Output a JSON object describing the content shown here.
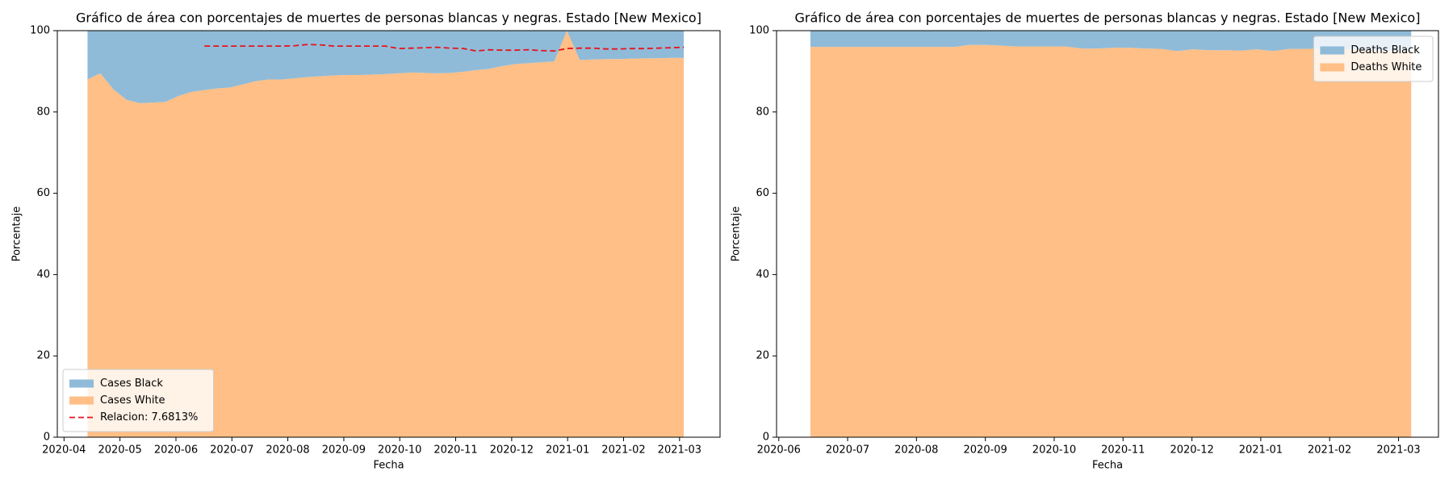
{
  "chart_data": [
    {
      "type": "area",
      "title": "Gráfico de área con porcentajes de muertes de personas blancas y negras. Estado [New Mexico]",
      "xlabel": "Fecha",
      "ylabel": "Porcentaje",
      "x": [
        2020.285,
        2020.304,
        2020.324,
        2020.343,
        2020.362,
        2020.382,
        2020.401,
        2020.42,
        2020.439,
        2020.459,
        2020.478,
        2020.497,
        2020.517,
        2020.536,
        2020.555,
        2020.575,
        2020.594,
        2020.613,
        2020.632,
        2020.652,
        2020.671,
        2020.69,
        2020.71,
        2020.729,
        2020.748,
        2020.768,
        2020.787,
        2020.806,
        2020.825,
        2020.845,
        2020.864,
        2020.883,
        2020.903,
        2020.922,
        2020.941,
        2020.961,
        2020.98,
        2020.999,
        2021.018,
        2021.038,
        2021.057,
        2021.076,
        2021.096,
        2021.115,
        2021.134,
        2021.154,
        2021.173
      ],
      "series": [
        {
          "name": "Cases Black",
          "color": "#8fbbd9",
          "values": [
            12,
            10.5,
            14.5,
            17,
            17.8,
            17.7,
            17.5,
            16.1,
            15.1,
            14.6,
            14.2,
            14,
            13.2,
            12.4,
            12,
            12,
            11.7,
            11.4,
            11.2,
            11,
            10.9,
            10.9,
            10.8,
            10.7,
            10.5,
            10.3,
            10.4,
            10.5,
            10.4,
            10.1,
            9.7,
            9.4,
            8.7,
            8.2,
            8,
            7.8,
            7.6,
            0,
            7.2,
            7.1,
            7,
            7,
            6.9,
            6.8,
            6.8,
            6.7,
            6.7
          ]
        },
        {
          "name": "Cases White",
          "color": "#ffbf86",
          "values": [
            88,
            89.5,
            85.5,
            83,
            82.2,
            82.3,
            82.5,
            83.9,
            84.9,
            85.4,
            85.8,
            86,
            86.8,
            87.6,
            88,
            88,
            88.3,
            88.6,
            88.8,
            89,
            89.1,
            89.1,
            89.2,
            89.3,
            89.5,
            89.7,
            89.6,
            89.5,
            89.6,
            89.9,
            90.3,
            90.6,
            91.3,
            91.8,
            92,
            92.2,
            92.4,
            100,
            92.8,
            92.9,
            93,
            93,
            93.1,
            93.2,
            93.2,
            93.3,
            93.3
          ]
        },
        {
          "name": "Relacion: 7.6813%",
          "color": "#e8141c",
          "linestyle": "dashed",
          "values": [
            null,
            null,
            null,
            null,
            null,
            null,
            null,
            null,
            null,
            96.2,
            96.2,
            96.2,
            96.2,
            96.2,
            96.2,
            96.2,
            96.3,
            96.6,
            96.5,
            96.2,
            96.2,
            96.2,
            96.2,
            96.2,
            95.6,
            95.7,
            95.8,
            95.9,
            95.7,
            95.6,
            95,
            95.3,
            95.2,
            95.2,
            95.3,
            95.1,
            95,
            95.6,
            95.7,
            95.7,
            95.5,
            95.5,
            95.6,
            95.6,
            95.7,
            95.8,
            95.9
          ]
        }
      ],
      "xlim": [
        2020.24,
        2021.227
      ],
      "xticks": [
        {
          "value": 2020.25,
          "label": "2020-04"
        },
        {
          "value": 2020.3333,
          "label": "2020-05"
        },
        {
          "value": 2020.4167,
          "label": "2020-06"
        },
        {
          "value": 2020.5,
          "label": "2020-07"
        },
        {
          "value": 2020.5833,
          "label": "2020-08"
        },
        {
          "value": 2020.6667,
          "label": "2020-09"
        },
        {
          "value": 2020.75,
          "label": "2020-10"
        },
        {
          "value": 2020.8333,
          "label": "2020-11"
        },
        {
          "value": 2020.9167,
          "label": "2020-12"
        },
        {
          "value": 2021.0,
          "label": "2021-01"
        },
        {
          "value": 2021.0833,
          "label": "2021-02"
        },
        {
          "value": 2021.1667,
          "label": "2021-03"
        }
      ],
      "ylim": [
        0,
        100
      ],
      "yticks": [
        0,
        20,
        40,
        60,
        80,
        100
      ],
      "grid": false,
      "legend": "lower left"
    },
    {
      "type": "area",
      "title": "Gráfico de área con porcentajes de muertes de personas blancas y negras. Estado [New Mexico]",
      "xlabel": "Fecha",
      "ylabel": "Porcentaje",
      "x": [
        2020.455,
        2020.474,
        2020.494,
        2020.513,
        2020.532,
        2020.552,
        2020.571,
        2020.59,
        2020.609,
        2020.629,
        2020.648,
        2020.667,
        2020.687,
        2020.706,
        2020.725,
        2020.745,
        2020.764,
        2020.783,
        2020.802,
        2020.822,
        2020.841,
        2020.86,
        2020.88,
        2020.899,
        2020.918,
        2020.938,
        2020.957,
        2020.976,
        2020.995,
        2021.015,
        2021.034,
        2021.053,
        2021.073,
        2021.092,
        2021.111,
        2021.13,
        2021.15,
        2021.169,
        2021.182
      ],
      "series": [
        {
          "name": "Deaths Black",
          "color": "#8fbbd9",
          "values": [
            4,
            4,
            4,
            4,
            4,
            4,
            4,
            4,
            4,
            4,
            3.5,
            3.5,
            3.7,
            3.9,
            3.9,
            3.9,
            3.9,
            4.4,
            4.4,
            4.2,
            4.2,
            4.4,
            4.5,
            5,
            4.6,
            4.8,
            4.8,
            4.9,
            4.6,
            5,
            4.5,
            4.5,
            4.4,
            4.4,
            4.7,
            4.8,
            5,
            5,
            5
          ]
        },
        {
          "name": "Deaths White",
          "color": "#ffbf86",
          "values": [
            96,
            96,
            96,
            96,
            96,
            96,
            96,
            96,
            96,
            96,
            96.5,
            96.5,
            96.3,
            96.1,
            96.1,
            96.1,
            96.1,
            95.6,
            95.6,
            95.8,
            95.8,
            95.6,
            95.5,
            95,
            95.4,
            95.2,
            95.2,
            95.1,
            95.4,
            95,
            95.5,
            95.5,
            95.6,
            95.6,
            95.3,
            95.2,
            95,
            95,
            95
          ]
        }
      ],
      "xlim": [
        2020.414,
        2021.215
      ],
      "xticks": [
        {
          "value": 2020.4167,
          "label": "2020-06"
        },
        {
          "value": 2020.5,
          "label": "2020-07"
        },
        {
          "value": 2020.5833,
          "label": "2020-08"
        },
        {
          "value": 2020.6667,
          "label": "2020-09"
        },
        {
          "value": 2020.75,
          "label": "2020-10"
        },
        {
          "value": 2020.8333,
          "label": "2020-11"
        },
        {
          "value": 2020.9167,
          "label": "2020-12"
        },
        {
          "value": 2021.0,
          "label": "2021-01"
        },
        {
          "value": 2021.0833,
          "label": "2021-02"
        },
        {
          "value": 2021.1667,
          "label": "2021-03"
        }
      ],
      "ylim": [
        0,
        100
      ],
      "yticks": [
        0,
        20,
        40,
        60,
        80,
        100
      ],
      "grid": false,
      "legend": "upper right"
    }
  ]
}
